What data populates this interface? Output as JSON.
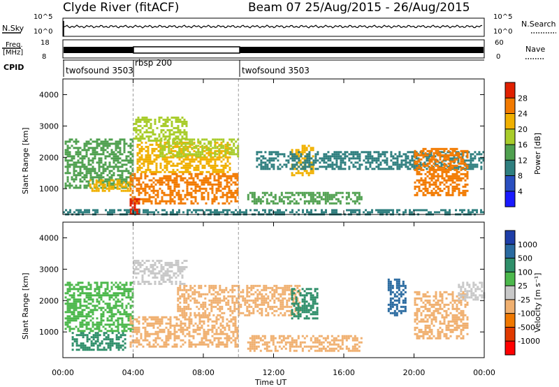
{
  "header": {
    "station": "Clyde River (fitACF)",
    "beam_date": "Beam 07 25/Aug/2015 - 26/Aug/2015"
  },
  "strip_labels": {
    "nsky": "N.Sky",
    "nsky_ticks": [
      "10^5",
      "10^0"
    ],
    "nsearch": "N.Search",
    "nsearch_ticks": [
      "10^5",
      "10^0"
    ],
    "freq": "Freq.",
    "freq_unit": "[MHz]",
    "freq_ticks": [
      "18",
      "8"
    ],
    "nave": "Nave",
    "nave_ticks": [
      "60",
      "0"
    ],
    "cpid": "CPID",
    "cpid_segments": [
      {
        "label": "twofsound 3503",
        "start_hour": 0
      },
      {
        "label": "rbsp 200",
        "start_hour": 4
      },
      {
        "label": "twofsound 3503",
        "start_hour": 10
      }
    ]
  },
  "chart_data": [
    {
      "type": "heatmap",
      "name": "power",
      "ylabel": "Slant Range [km]",
      "xlabel": "",
      "xlim": [
        0,
        24
      ],
      "ylim": [
        180,
        4500
      ],
      "yticks": [
        1000,
        2000,
        3000,
        4000
      ],
      "colorbar_label": "Power [dB]",
      "colorbar_ticks": [
        4,
        8,
        12,
        16,
        20,
        24,
        28
      ],
      "colorbar_colors": [
        "#1a1aff",
        "#2a4fc0",
        "#2f7f7f",
        "#4fa04f",
        "#a8cc2a",
        "#f0b000",
        "#f27a00",
        "#e02000"
      ],
      "regions": [
        {
          "t0": 0.1,
          "t1": 4.0,
          "r0": 1000,
          "r1": 2600,
          "level": 12
        },
        {
          "t0": 1.5,
          "t1": 3.8,
          "r0": 900,
          "r1": 1300,
          "level": 20
        },
        {
          "t0": 3.8,
          "t1": 10.0,
          "r0": 500,
          "r1": 1500,
          "level": 26
        },
        {
          "t0": 4.2,
          "t1": 9.5,
          "r0": 1500,
          "r1": 2500,
          "level": 22
        },
        {
          "t0": 4.0,
          "t1": 7.0,
          "r0": 2500,
          "r1": 3300,
          "level": 16
        },
        {
          "t0": 5.5,
          "t1": 10.0,
          "r0": 2000,
          "r1": 2600,
          "level": 18
        },
        {
          "t0": 3.8,
          "t1": 4.3,
          "r0": 180,
          "r1": 700,
          "level": 28
        },
        {
          "t0": 10.5,
          "t1": 17.0,
          "r0": 500,
          "r1": 900,
          "level": 12
        },
        {
          "t0": 13.0,
          "t1": 14.2,
          "r0": 1400,
          "r1": 2400,
          "level": 22
        },
        {
          "t0": 11.0,
          "t1": 24.0,
          "r0": 1600,
          "r1": 2200,
          "level": 10
        },
        {
          "t0": 20.0,
          "t1": 23.0,
          "r0": 800,
          "r1": 2300,
          "level": 24
        },
        {
          "t0": 0.0,
          "t1": 24.0,
          "r0": 180,
          "r1": 350,
          "level": 8
        }
      ]
    },
    {
      "type": "heatmap",
      "name": "velocity",
      "ylabel": "Slant Range [km]",
      "xlabel": "Time UT",
      "xlim": [
        0,
        24
      ],
      "ylim": [
        180,
        4500
      ],
      "yticks": [
        1000,
        2000,
        3000,
        4000
      ],
      "colorbar_label": "Velocity [m s⁻¹]",
      "colorbar_ticks": [
        "1000",
        "500",
        "100",
        "25",
        "-25",
        "-100",
        "-500",
        "-1000"
      ],
      "colorbar_colors": [
        "#1e3ea8",
        "#2a6aa0",
        "#2f8f6a",
        "#4cb84c",
        "#c8c8c8",
        "#f0b070",
        "#f07800",
        "#e03a00",
        "#ff0000"
      ],
      "regions": [
        {
          "t0": 0.1,
          "t1": 4.0,
          "r0": 1000,
          "r1": 2600,
          "level": "25"
        },
        {
          "t0": 0.5,
          "t1": 3.5,
          "r0": 400,
          "r1": 1000,
          "level": "100"
        },
        {
          "t0": 3.8,
          "t1": 10.0,
          "r0": 500,
          "r1": 1500,
          "level": "-100"
        },
        {
          "t0": 6.5,
          "t1": 13.5,
          "r0": 1500,
          "r1": 2500,
          "level": "-100"
        },
        {
          "t0": 4.0,
          "t1": 7.0,
          "r0": 2500,
          "r1": 3300,
          "level": "-25"
        },
        {
          "t0": 10.5,
          "t1": 17.0,
          "r0": 400,
          "r1": 900,
          "level": "-100"
        },
        {
          "t0": 13.0,
          "t1": 14.5,
          "r0": 1400,
          "r1": 2400,
          "level": "100"
        },
        {
          "t0": 18.5,
          "t1": 19.5,
          "r0": 1500,
          "r1": 2700,
          "level": "500"
        },
        {
          "t0": 20.0,
          "t1": 23.0,
          "r0": 800,
          "r1": 2300,
          "level": "-100"
        },
        {
          "t0": 22.5,
          "t1": 24.0,
          "r0": 2000,
          "r1": 2600,
          "level": "-25"
        }
      ]
    }
  ],
  "time_axis": {
    "ticks": [
      "00:00",
      "04:00",
      "08:00",
      "12:00",
      "16:00",
      "20:00",
      "00:00"
    ],
    "label": "Time UT"
  }
}
